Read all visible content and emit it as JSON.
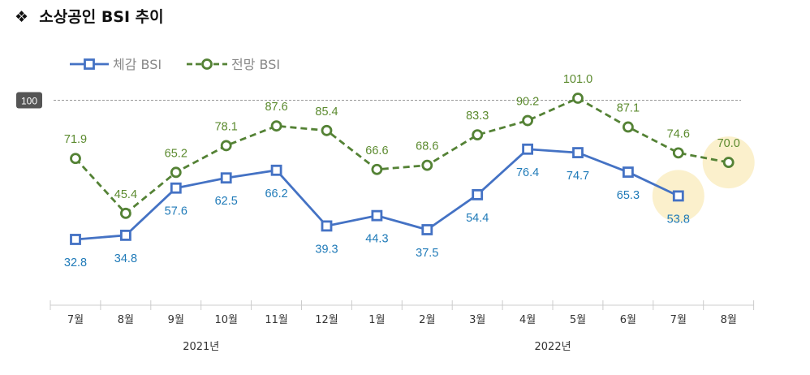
{
  "title_bullet": "❖",
  "title": "소상공인 BSI 추이",
  "chart_data": {
    "type": "line",
    "categories": [
      "7월",
      "8월",
      "9월",
      "10월",
      "11월",
      "12월",
      "1월",
      "2월",
      "3월",
      "4월",
      "5월",
      "6월",
      "7월",
      "8월"
    ],
    "year_groups": [
      {
        "label": "2021년",
        "from": 0,
        "to": 5
      },
      {
        "label": "2022년",
        "from": 6,
        "to": 13
      }
    ],
    "series": [
      {
        "name": "체감 BSI",
        "color": "#4472c4",
        "label_color": "#1f7ab8",
        "marker": "square",
        "dashed": false,
        "values": [
          32.8,
          34.8,
          57.6,
          62.5,
          66.2,
          39.3,
          44.3,
          37.5,
          54.4,
          76.4,
          74.7,
          65.3,
          53.8,
          null
        ]
      },
      {
        "name": "전망 BSI",
        "color": "#548235",
        "label_color": "#5b8a2e",
        "marker": "circle",
        "dashed": true,
        "values": [
          71.9,
          45.4,
          65.2,
          78.1,
          87.6,
          85.4,
          66.6,
          68.6,
          83.3,
          90.2,
          101.0,
          87.1,
          74.6,
          70.0
        ]
      }
    ],
    "reference_line": {
      "value": 100,
      "label": "100"
    },
    "highlighted_points": [
      {
        "series": 0,
        "index": 12
      },
      {
        "series": 1,
        "index": 13
      }
    ],
    "legend_position": "top-left",
    "grid": false
  }
}
